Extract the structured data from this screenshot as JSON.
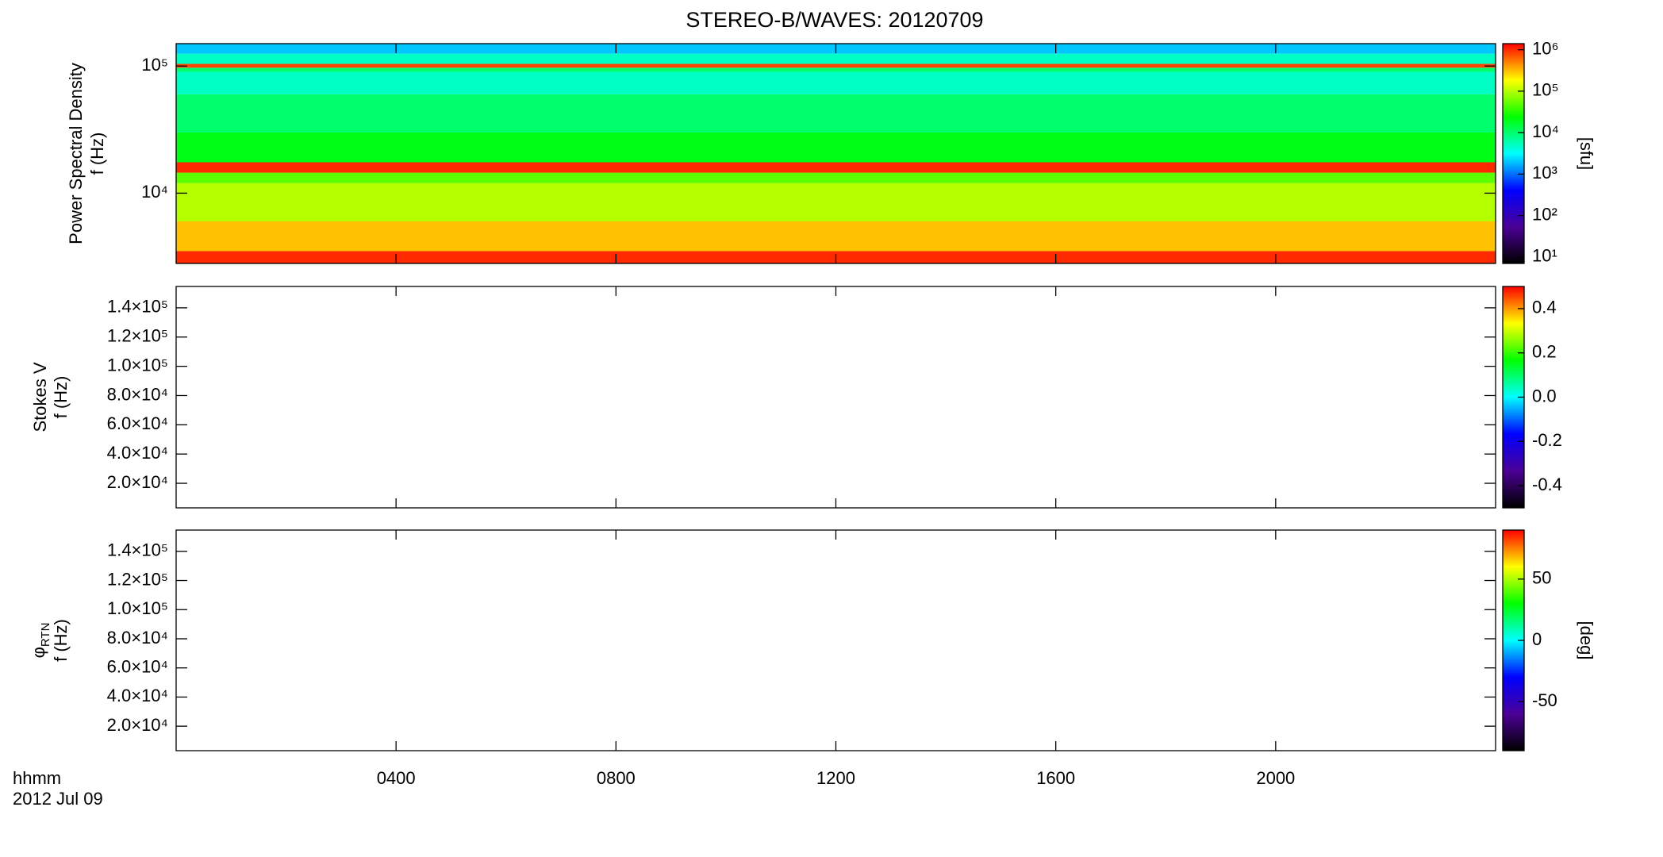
{
  "title": "STEREO-B/WAVES: 20120709",
  "x_label": "hhmm",
  "date": "2012 Jul 09",
  "xlim": [
    0,
    24
  ],
  "xticks": [
    {
      "value": 4,
      "label": "0400"
    },
    {
      "value": 8,
      "label": "0800"
    },
    {
      "value": 12,
      "label": "1200"
    },
    {
      "value": 16,
      "label": "1600"
    },
    {
      "value": 20,
      "label": "2000"
    }
  ],
  "colormap": [
    "#000000",
    "#4b0096",
    "#0000ff",
    "#00ffff",
    "#00ff00",
    "#ffff00",
    "#ff0000"
  ],
  "chart_data": [
    {
      "type": "heatmap",
      "ylabel": "Power Spectral Density",
      "ylabel2": "f (Hz)",
      "log": true,
      "ylim": [
        2800,
        150000
      ],
      "yticks": [
        {
          "value": 10000,
          "label": "10⁴"
        },
        {
          "value": 100000,
          "label": "10⁵"
        }
      ],
      "y_edges": [
        2800,
        3500,
        6000,
        12000,
        14500,
        17500,
        30000,
        60000,
        90000,
        97000,
        104000,
        125000,
        150000
      ],
      "values": [
        1000000,
        300000,
        100000,
        50000,
        1000000,
        20000,
        10000,
        5000,
        10000,
        800000,
        5000,
        2000
      ],
      "colorbar": {
        "log": true,
        "lim": [
          7,
          1400000
        ],
        "ticks": [
          {
            "value": 10,
            "label": "10¹"
          },
          {
            "value": 100,
            "label": "10²"
          },
          {
            "value": 1000,
            "label": "10³"
          },
          {
            "value": 10000,
            "label": "10⁴"
          },
          {
            "value": 100000,
            "label": "10⁵"
          },
          {
            "value": 1000000,
            "label": "10⁶"
          }
        ],
        "label": "[sfu]"
      }
    },
    {
      "type": "heatmap",
      "ylabel": "Stokes V",
      "ylabel2": "f (Hz)",
      "ylim": [
        3200,
        154600
      ],
      "yticks": [
        {
          "value": 20000,
          "label": "2.0×10⁴"
        },
        {
          "value": 40000,
          "label": "4.0×10⁴"
        },
        {
          "value": 60000,
          "label": "6.0×10⁴"
        },
        {
          "value": 80000,
          "label": "8.0×10⁴"
        },
        {
          "value": 100000,
          "label": "1.0×10⁵"
        },
        {
          "value": 120000,
          "label": "1.2×10⁵"
        },
        {
          "value": 140000,
          "label": "1.4×10⁵"
        }
      ],
      "colorbar": {
        "lim": [
          -0.5,
          0.5
        ],
        "ticks": [
          -0.4,
          -0.2,
          {
            "value": 0,
            "label": "0.0"
          },
          0.2,
          0.4
        ]
      }
    },
    {
      "type": "heatmap",
      "ylabel": "φ",
      "ylabel_sub": "RTN",
      "ylabel2": "f (Hz)",
      "ylim": [
        3200,
        154600
      ],
      "yticks": [
        {
          "value": 20000,
          "label": "2.0×10⁴"
        },
        {
          "value": 40000,
          "label": "4.0×10⁴"
        },
        {
          "value": 60000,
          "label": "6.0×10⁴"
        },
        {
          "value": 80000,
          "label": "8.0×10⁴"
        },
        {
          "value": 100000,
          "label": "1.0×10⁵"
        },
        {
          "value": 120000,
          "label": "1.2×10⁵"
        },
        {
          "value": 140000,
          "label": "1.4×10⁵"
        }
      ],
      "colorbar": {
        "lim": [
          -90,
          90
        ],
        "ticks": [
          -50,
          0,
          50
        ],
        "label": "[deg]"
      }
    }
  ]
}
